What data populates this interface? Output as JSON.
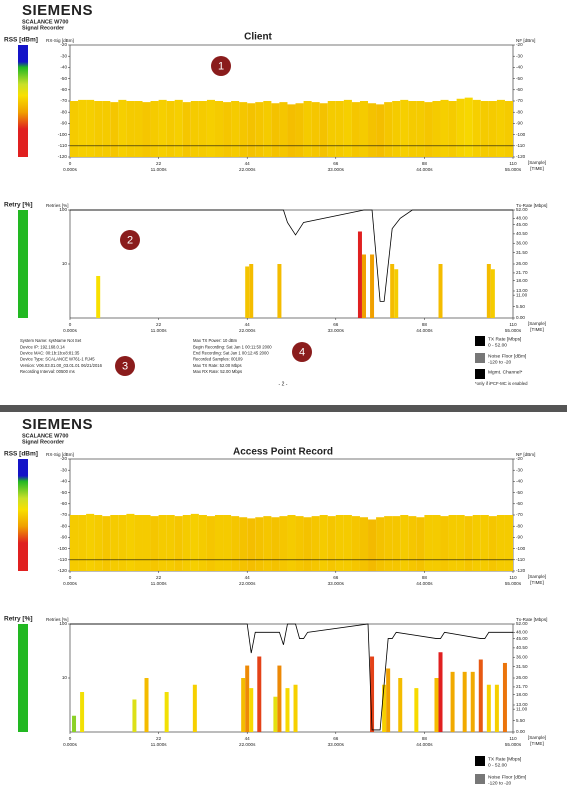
{
  "pages": [
    {
      "header": {
        "brand": "SIEMENS",
        "product": "SCALANCE W700",
        "subtitle": "Signal Recorder"
      },
      "title": "Client",
      "rss": {
        "type": "bar",
        "axis_label": "RSS [dBm]",
        "left_title": "RX-Sig [dBm]",
        "right_title": "NF [dBm]",
        "ylim": [
          -120,
          -20
        ],
        "yticks": [
          -20,
          -30,
          -40,
          -50,
          -60,
          -70,
          -80,
          -90,
          -100,
          -110,
          -120
        ],
        "xlim": [
          0,
          110
        ],
        "xticks": [
          0,
          22,
          44,
          66,
          88,
          110
        ],
        "x_time_labels": [
          "0.000s",
          "11.000s",
          "22.000s",
          "33.000s",
          "44.000s",
          "55.000s"
        ],
        "x_unit": "[Sample]",
        "time_unit": "[TIME]",
        "x": [
          0,
          2,
          4,
          6,
          8,
          10,
          12,
          14,
          16,
          18,
          20,
          22,
          24,
          26,
          28,
          30,
          32,
          34,
          36,
          38,
          40,
          42,
          44,
          46,
          48,
          50,
          52,
          54,
          56,
          58,
          60,
          62,
          64,
          66,
          68,
          70,
          72,
          74,
          76,
          78,
          80,
          82,
          84,
          86,
          88,
          90,
          92,
          94,
          96,
          98,
          100,
          102,
          104,
          106,
          108
        ],
        "values": [
          -70,
          -69,
          -69,
          -70,
          -70,
          -71,
          -69,
          -70,
          -70,
          -71,
          -70,
          -69,
          -70,
          -69,
          -71,
          -70,
          -70,
          -69,
          -70,
          -71,
          -70,
          -71,
          -72,
          -71,
          -70,
          -72,
          -71,
          -73,
          -72,
          -70,
          -71,
          -72,
          -70,
          -70,
          -69,
          -71,
          -70,
          -72,
          -73,
          -71,
          -70,
          -69,
          -70,
          -70,
          -71,
          -70,
          -69,
          -70,
          -68,
          -67,
          -69,
          -70,
          -70,
          -69,
          -70
        ],
        "noise_floor": -110,
        "colorscale": [
          [
            -20,
            "#1414c8"
          ],
          [
            -35,
            "#1414c8"
          ],
          [
            -40,
            "#22b822"
          ],
          [
            -55,
            "#c8e028"
          ],
          [
            -65,
            "#f8e000"
          ],
          [
            -80,
            "#f0a000"
          ],
          [
            -95,
            "#e02020"
          ],
          [
            -120,
            "#e02020"
          ]
        ]
      },
      "retry": {
        "type": "bar",
        "axis_label": "Retry [%]",
        "left_title": "Retries [%]",
        "right_title": "Tx-Rate [Mbps]",
        "log_scale": true,
        "ylim": [
          1,
          100
        ],
        "yticks": [
          100,
          10
        ],
        "y2lim": [
          0,
          52
        ],
        "y2ticks": [
          {
            "value": 52,
            "label": "52.00"
          },
          {
            "value": 48,
            "label": "48.00"
          },
          {
            "value": 45,
            "label": "45.00"
          },
          {
            "value": 40.5,
            "label": "40.50"
          },
          {
            "value": 36,
            "label": "36.00"
          },
          {
            "value": 31.5,
            "label": "31.50"
          },
          {
            "value": 26,
            "label": "26.00"
          },
          {
            "value": 21.7,
            "label": "21.70"
          },
          {
            "value": 18,
            "label": "18.00"
          },
          {
            "value": 13,
            "label": "13.00"
          },
          {
            "value": 11,
            "label": "11.00"
          },
          {
            "value": 5.5,
            "label": "5.50"
          },
          {
            "value": 0,
            "label": "0.00"
          }
        ],
        "xlim": [
          0,
          110
        ],
        "xticks": [
          0,
          22,
          44,
          66,
          88,
          110
        ],
        "x_time_labels": [
          "0.000s",
          "11.000s",
          "22.000s",
          "33.000s",
          "44.000s",
          "55.000s"
        ],
        "x_unit": "[Sample]",
        "time_unit": "[TIME]",
        "x": [
          7,
          44,
          45,
          52,
          72,
          73,
          75,
          80,
          81,
          92,
          104,
          105
        ],
        "values": [
          6,
          9,
          10,
          10,
          40,
          15,
          15,
          10,
          8,
          10,
          10,
          8
        ],
        "colorscale": [
          [
            1,
            "#22b822"
          ],
          [
            3,
            "#c8e028"
          ],
          [
            6,
            "#f8e000"
          ],
          [
            15,
            "#f0a000"
          ],
          [
            30,
            "#e02020"
          ],
          [
            100,
            "#e02020"
          ]
        ],
        "tx_rate": {
          "axis": "y2",
          "color": "#000000",
          "x": [
            0,
            53,
            54,
            56,
            58,
            73,
            75,
            77,
            78,
            80,
            82,
            85,
            110
          ],
          "values": [
            52,
            52,
            46,
            40,
            46,
            52,
            52,
            8,
            8,
            43,
            48,
            52,
            52
          ]
        }
      },
      "markers": [
        "1",
        "2",
        "3",
        "4"
      ],
      "info": [
        "System Name: sysName Not Set",
        "Device IP: 192.168.0.14",
        "Device MAC: 00:1b:1b:e8:81:35",
        "Device Type: SCALANCE W761-1 RJ45",
        "Version: V06.03.01.00_03.01.01 06/21/2016",
        "Recording Interval: 00500 ms"
      ],
      "info2": [
        "Max TX Power: 10 dBm",
        "Begin Recording: Sat Jan 1 00:11:50 2000",
        "End Recording: Sat Jan 1 00:12:45 2000",
        "Recorded Samples: 00109",
        "Max TX Rate: 52.00 Mbps",
        "Max RX Rate: 52.00 Mbps"
      ],
      "legend": [
        {
          "label": "TX Rate [Mbps]",
          "range": "0 - 52.00",
          "color": "#000000"
        },
        {
          "label": "Noise Floor [dBm]",
          "range": "-120 to -20",
          "color": "#777777"
        },
        {
          "label": "Mgmt. Channel*",
          "color": "#000000"
        }
      ],
      "note": "*only if iPCF-MC is enabled",
      "page_number": "- 2 -"
    },
    {
      "header": {
        "brand": "SIEMENS",
        "product": "SCALANCE W700",
        "subtitle": "Signal Recorder"
      },
      "title": "Access Point Record",
      "rss": {
        "type": "bar",
        "axis_label": "RSS [dBm]",
        "left_title": "RX-Sig [dBm]",
        "right_title": "NF [dBm]",
        "ylim": [
          -120,
          -20
        ],
        "yticks": [
          -20,
          -30,
          -40,
          -50,
          -60,
          -70,
          -80,
          -90,
          -100,
          -110,
          -120
        ],
        "xlim": [
          0,
          110
        ],
        "xticks": [
          0,
          22,
          44,
          66,
          88,
          110
        ],
        "x_time_labels": [
          "0.000s",
          "11.000s",
          "22.000s",
          "33.000s",
          "44.000s",
          "55.000s"
        ],
        "x_unit": "[Sample]",
        "time_unit": "[TIME]",
        "x": [
          0,
          2,
          4,
          6,
          8,
          10,
          12,
          14,
          16,
          18,
          20,
          22,
          24,
          26,
          28,
          30,
          32,
          34,
          36,
          38,
          40,
          42,
          44,
          46,
          48,
          50,
          52,
          54,
          56,
          58,
          60,
          62,
          64,
          66,
          68,
          70,
          72,
          74,
          76,
          78,
          80,
          82,
          84,
          86,
          88,
          90,
          92,
          94,
          96,
          98,
          100,
          102,
          104,
          106,
          108
        ],
        "values": [
          -70,
          -70,
          -69,
          -70,
          -71,
          -70,
          -70,
          -69,
          -70,
          -70,
          -71,
          -70,
          -70,
          -71,
          -70,
          -69,
          -70,
          -71,
          -70,
          -70,
          -71,
          -72,
          -73,
          -72,
          -71,
          -72,
          -71,
          -70,
          -71,
          -72,
          -71,
          -70,
          -71,
          -70,
          -70,
          -71,
          -72,
          -74,
          -72,
          -71,
          -71,
          -70,
          -71,
          -72,
          -70,
          -70,
          -71,
          -70,
          -70,
          -71,
          -70,
          -70,
          -71,
          -70,
          -70
        ],
        "noise_floor": -110,
        "colorscale": [
          [
            -20,
            "#1414c8"
          ],
          [
            -35,
            "#1414c8"
          ],
          [
            -40,
            "#22b822"
          ],
          [
            -55,
            "#c8e028"
          ],
          [
            -65,
            "#f8e000"
          ],
          [
            -80,
            "#f0a000"
          ],
          [
            -95,
            "#e02020"
          ],
          [
            -120,
            "#e02020"
          ]
        ]
      },
      "retry": {
        "type": "bar",
        "axis_label": "Retry [%]",
        "left_title": "Retries [%]",
        "right_title": "Tx-Rate [Mbps]",
        "log_scale": true,
        "ylim": [
          1,
          100
        ],
        "yticks": [
          100,
          10
        ],
        "y2lim": [
          0,
          52
        ],
        "y2ticks": [
          {
            "value": 52,
            "label": "52.00"
          },
          {
            "value": 48,
            "label": "48.00"
          },
          {
            "value": 45,
            "label": "45.00"
          },
          {
            "value": 40.5,
            "label": "40.50"
          },
          {
            "value": 36,
            "label": "36.00"
          },
          {
            "value": 31.5,
            "label": "31.50"
          },
          {
            "value": 26,
            "label": "26.00"
          },
          {
            "value": 21.7,
            "label": "21.70"
          },
          {
            "value": 18,
            "label": "18.00"
          },
          {
            "value": 13,
            "label": "13.00"
          },
          {
            "value": 11,
            "label": "11.00"
          },
          {
            "value": 5.5,
            "label": "5.50"
          },
          {
            "value": 0,
            "label": "0.00"
          }
        ],
        "xlim": [
          0,
          110
        ],
        "xticks": [
          0,
          22,
          44,
          66,
          88,
          110
        ],
        "x_time_labels": [
          "0.000s",
          "11.000s",
          "22.000s",
          "33.000s",
          "44.000s",
          "55.000s"
        ],
        "x_unit": "[Sample]",
        "time_unit": "[TIME]",
        "x": [
          1,
          3,
          16,
          19,
          24,
          31,
          43,
          44,
          45,
          47,
          51,
          52,
          54,
          56,
          75,
          78,
          79,
          82,
          86,
          91,
          92,
          95,
          98,
          100,
          102,
          104,
          106,
          108
        ],
        "values": [
          2,
          5.5,
          4,
          10,
          5.5,
          7.5,
          10,
          17,
          6.5,
          25,
          4.5,
          17,
          6.5,
          7.5,
          25,
          7.5,
          15,
          10,
          6.5,
          10,
          30,
          13,
          13,
          13,
          22,
          7.5,
          7.5,
          19
        ],
        "colorscale": [
          [
            1,
            "#22b822"
          ],
          [
            3,
            "#c8e028"
          ],
          [
            6,
            "#f8e000"
          ],
          [
            15,
            "#f0a000"
          ],
          [
            30,
            "#e02020"
          ],
          [
            100,
            "#e02020"
          ]
        ],
        "tx_rate": {
          "axis": "y2",
          "color": "#000000",
          "x": [
            0,
            44,
            45,
            46,
            52,
            53,
            54,
            56,
            57,
            58,
            59,
            74,
            75,
            77,
            79,
            80,
            81,
            91,
            92,
            93,
            102,
            103,
            104,
            110
          ],
          "values": [
            52,
            52,
            38,
            48,
            48,
            42,
            52,
            52,
            45,
            45,
            48,
            52,
            1,
            1,
            45,
            45,
            48,
            45,
            45,
            48,
            45,
            45,
            48,
            48
          ]
        }
      },
      "legend": [
        {
          "label": "TX Rate [Mbps]",
          "range": "0 - 52.00",
          "color": "#000000"
        },
        {
          "label": "Noise Floor [dBm]",
          "range": "-120 to -20",
          "color": "#777777"
        }
      ]
    }
  ]
}
